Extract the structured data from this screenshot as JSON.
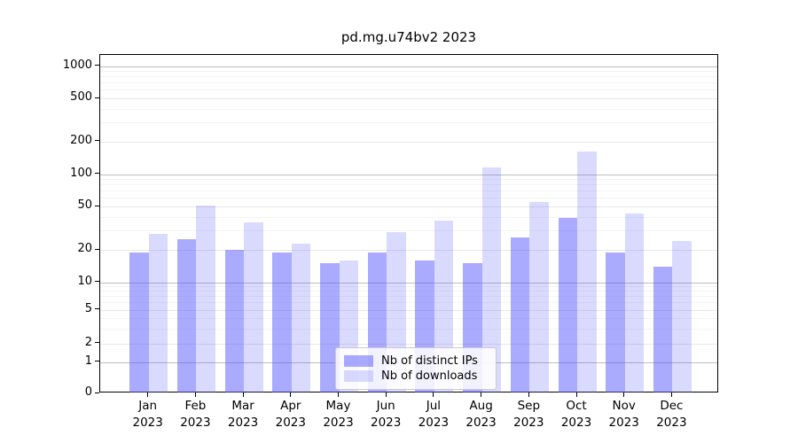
{
  "chart_data": {
    "type": "bar",
    "title": "pd.mg.u74bv2 2023",
    "categories": [
      "Jan",
      "Feb",
      "Mar",
      "Apr",
      "May",
      "Jun",
      "Jul",
      "Aug",
      "Sep",
      "Oct",
      "Nov",
      "Dec"
    ],
    "year": "2023",
    "series": [
      {
        "name": "Nb of distinct IPs",
        "key": "distinct-ips",
        "color": "rgba(85,85,255,0.50)",
        "values": [
          19,
          25,
          20,
          19,
          15,
          19,
          16,
          15,
          26,
          39,
          19,
          14
        ]
      },
      {
        "name": "Nb of downloads",
        "key": "downloads",
        "color": "rgba(85,85,255,0.22)",
        "values": [
          28,
          51,
          36,
          23,
          16,
          29,
          37,
          115,
          55,
          162,
          43,
          24
        ]
      }
    ],
    "y_axis": {
      "scale": "symlog",
      "ticks": [
        0,
        1,
        2,
        5,
        10,
        20,
        50,
        100,
        200,
        500,
        1000
      ],
      "minor_ticks": [
        3,
        4,
        6,
        7,
        8,
        9,
        30,
        40,
        60,
        70,
        80,
        90,
        300,
        400,
        600,
        700,
        800,
        900
      ],
      "ylim": [
        0,
        1000
      ]
    },
    "x_axis": {
      "tick_label_line2": "2023"
    },
    "legend_position": "lower center",
    "grid": true,
    "colors": {
      "bar_distinct_ips": "rgba(85,85,255,0.50)",
      "bar_downloads": "rgba(85,85,255,0.22)",
      "grid_power10": "#bdbdbd",
      "grid_labeled": "#e7e7e7",
      "grid_minor": "#f3f3f3",
      "spine": "#000000"
    }
  }
}
